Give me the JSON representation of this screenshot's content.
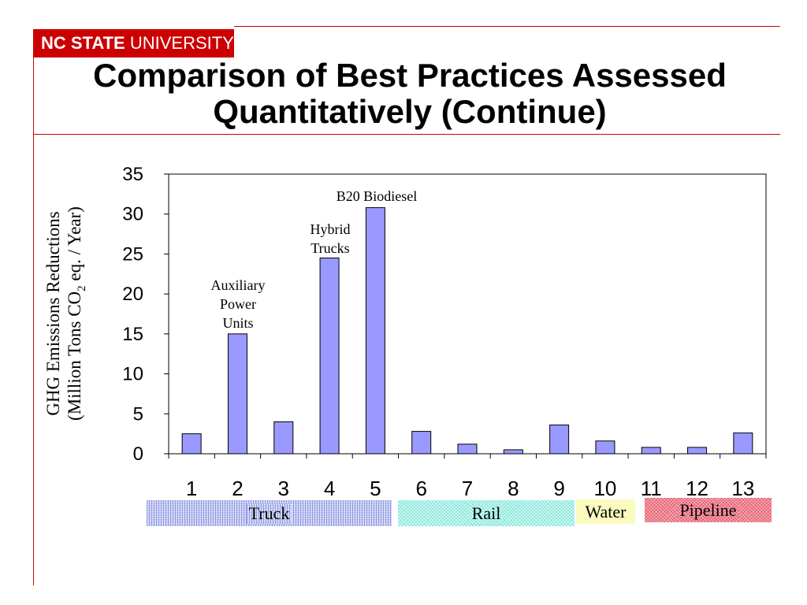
{
  "header": {
    "logo_bold": "NC STATE",
    "logo_rest": " UNIVERSITY",
    "brand_color": "#cc0000"
  },
  "title": {
    "line1": "Comparison of Best Practices Assessed",
    "line2": "Quantitatively (Continue)"
  },
  "chart_data": {
    "type": "bar",
    "categories": [
      "1",
      "2",
      "3",
      "4",
      "5",
      "6",
      "7",
      "8",
      "9",
      "10",
      "11",
      "12",
      "13"
    ],
    "values": [
      2.5,
      15,
      4,
      24.5,
      30.8,
      2.8,
      1.2,
      0.5,
      3.6,
      1.6,
      0.8,
      0.8,
      2.6
    ],
    "ylabel_line1": "GHG Emissions Reductions",
    "ylabel_line2_pre": "(Million Tons CO",
    "ylabel_sub": "2",
    "ylabel_line2_post": " eq. / Year)",
    "ylim": [
      0,
      35
    ],
    "yticks": [
      "0",
      "5",
      "10",
      "15",
      "20",
      "25",
      "30",
      "35"
    ],
    "bar_color": "#9999ff",
    "grid": false,
    "annotations": {
      "apu": [
        "Auxiliary",
        "Power",
        "Units"
      ],
      "hybrid": [
        "Hybrid",
        "Trucks"
      ],
      "biodiesel": "B20 Biodiesel"
    },
    "modes": {
      "truck": "Truck",
      "rail": "Rail",
      "water": "Water",
      "pipeline": "Pipeline"
    }
  }
}
